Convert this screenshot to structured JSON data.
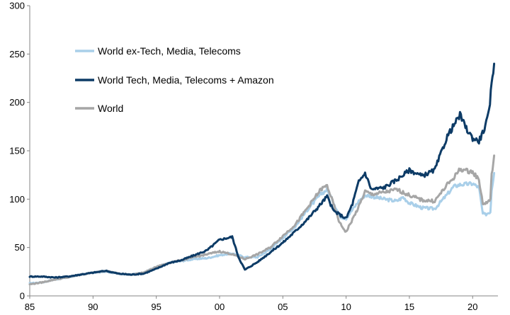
{
  "chart_data": {
    "type": "line",
    "title": "",
    "xlabel": "",
    "ylabel": "",
    "xlim": [
      1985,
      2022
    ],
    "ylim": [
      0,
      300
    ],
    "grid": false,
    "legend_position": "upper-left",
    "x_ticks": [
      {
        "value": 1985,
        "label": "85"
      },
      {
        "value": 1990,
        "label": "90"
      },
      {
        "value": 1995,
        "label": "95"
      },
      {
        "value": 2000,
        "label": "00"
      },
      {
        "value": 2005,
        "label": "05"
      },
      {
        "value": 2010,
        "label": "10"
      },
      {
        "value": 2015,
        "label": "15"
      },
      {
        "value": 2020,
        "label": "20"
      }
    ],
    "y_ticks": [
      {
        "value": 0,
        "label": "0"
      },
      {
        "value": 50,
        "label": "50"
      },
      {
        "value": 100,
        "label": "100"
      },
      {
        "value": 150,
        "label": "150"
      },
      {
        "value": 200,
        "label": "200"
      },
      {
        "value": 250,
        "label": "250"
      },
      {
        "value": 300,
        "label": "300"
      }
    ],
    "series": [
      {
        "name": "World ex-Tech, Media, Telecoms",
        "color": "#a9cfe9",
        "points": [
          [
            1985,
            13
          ],
          [
            1986,
            14
          ],
          [
            1987,
            17
          ],
          [
            1988,
            19
          ],
          [
            1989,
            22
          ],
          [
            1990,
            24
          ],
          [
            1991,
            25
          ],
          [
            1992,
            23
          ],
          [
            1993,
            22
          ],
          [
            1994,
            24
          ],
          [
            1995,
            30
          ],
          [
            1996,
            34
          ],
          [
            1997,
            36
          ],
          [
            1998,
            38
          ],
          [
            1999,
            39
          ],
          [
            2000,
            42
          ],
          [
            2001,
            44
          ],
          [
            2002,
            40
          ],
          [
            2003,
            40
          ],
          [
            2004,
            48
          ],
          [
            2005,
            60
          ],
          [
            2006,
            72
          ],
          [
            2007,
            90
          ],
          [
            2008,
            105
          ],
          [
            2008.5,
            110
          ],
          [
            2009,
            97
          ],
          [
            2009.5,
            82
          ],
          [
            2010,
            80
          ],
          [
            2011,
            98
          ],
          [
            2011.5,
            104
          ],
          [
            2012,
            103
          ],
          [
            2013,
            100
          ],
          [
            2014,
            98
          ],
          [
            2014.5,
            102
          ],
          [
            2015,
            96
          ],
          [
            2016,
            91
          ],
          [
            2017,
            90
          ],
          [
            2018,
            105
          ],
          [
            2018.5,
            113
          ],
          [
            2019,
            115
          ],
          [
            2020,
            116
          ],
          [
            2020.5,
            112
          ],
          [
            2020.8,
            85
          ],
          [
            2021,
            84
          ],
          [
            2021.4,
            87
          ],
          [
            2021.5,
            110
          ],
          [
            2021.7,
            127
          ]
        ]
      },
      {
        "name": "World Tech, Media, Telecoms + Amazon",
        "color": "#0d3b66",
        "points": [
          [
            1985,
            20
          ],
          [
            1986,
            20
          ],
          [
            1987,
            19
          ],
          [
            1988,
            20
          ],
          [
            1989,
            22
          ],
          [
            1990,
            24
          ],
          [
            1991,
            26
          ],
          [
            1992,
            23
          ],
          [
            1993,
            22
          ],
          [
            1994,
            23
          ],
          [
            1995,
            28
          ],
          [
            1996,
            34
          ],
          [
            1997,
            37
          ],
          [
            1998,
            42
          ],
          [
            1999,
            47
          ],
          [
            2000,
            58
          ],
          [
            2001,
            61
          ],
          [
            2001.5,
            40
          ],
          [
            2002,
            27
          ],
          [
            2003,
            35
          ],
          [
            2004,
            45
          ],
          [
            2005,
            55
          ],
          [
            2006,
            67
          ],
          [
            2007,
            80
          ],
          [
            2008,
            95
          ],
          [
            2008.5,
            103
          ],
          [
            2009,
            88
          ],
          [
            2010,
            80
          ],
          [
            2010.5,
            95
          ],
          [
            2011,
            118
          ],
          [
            2011.5,
            127
          ],
          [
            2012,
            110
          ],
          [
            2013,
            112
          ],
          [
            2014,
            120
          ],
          [
            2015,
            130
          ],
          [
            2016,
            124
          ],
          [
            2017,
            130
          ],
          [
            2018,
            165
          ],
          [
            2019,
            187
          ],
          [
            2019.5,
            173
          ],
          [
            2020,
            163
          ],
          [
            2020.5,
            160
          ],
          [
            2021,
            175
          ],
          [
            2021.3,
            190
          ],
          [
            2021.5,
            220
          ],
          [
            2021.7,
            240
          ]
        ]
      },
      {
        "name": "World",
        "color": "#a6a6a6",
        "points": [
          [
            1985,
            12
          ],
          [
            1986,
            14
          ],
          [
            1987,
            17
          ],
          [
            1988,
            19
          ],
          [
            1989,
            22
          ],
          [
            1990,
            24
          ],
          [
            1991,
            26
          ],
          [
            1992,
            23
          ],
          [
            1993,
            22
          ],
          [
            1994,
            24
          ],
          [
            1995,
            30
          ],
          [
            1996,
            34
          ],
          [
            1997,
            37
          ],
          [
            1998,
            40
          ],
          [
            1999,
            43
          ],
          [
            2000,
            46
          ],
          [
            2001,
            43
          ],
          [
            2002,
            38
          ],
          [
            2003,
            43
          ],
          [
            2004,
            50
          ],
          [
            2005,
            62
          ],
          [
            2006,
            74
          ],
          [
            2007,
            92
          ],
          [
            2008,
            110
          ],
          [
            2008.5,
            114
          ],
          [
            2009,
            95
          ],
          [
            2009.5,
            75
          ],
          [
            2010,
            66
          ],
          [
            2011,
            92
          ],
          [
            2011.5,
            108
          ],
          [
            2012,
            105
          ],
          [
            2013,
            107
          ],
          [
            2014,
            110
          ],
          [
            2015,
            104
          ],
          [
            2016,
            99
          ],
          [
            2017,
            98
          ],
          [
            2018,
            115
          ],
          [
            2018.5,
            122
          ],
          [
            2019,
            131
          ],
          [
            2020,
            128
          ],
          [
            2020.5,
            120
          ],
          [
            2020.8,
            96
          ],
          [
            2021,
            95
          ],
          [
            2021.4,
            100
          ],
          [
            2021.5,
            125
          ],
          [
            2021.7,
            145
          ]
        ]
      }
    ]
  }
}
